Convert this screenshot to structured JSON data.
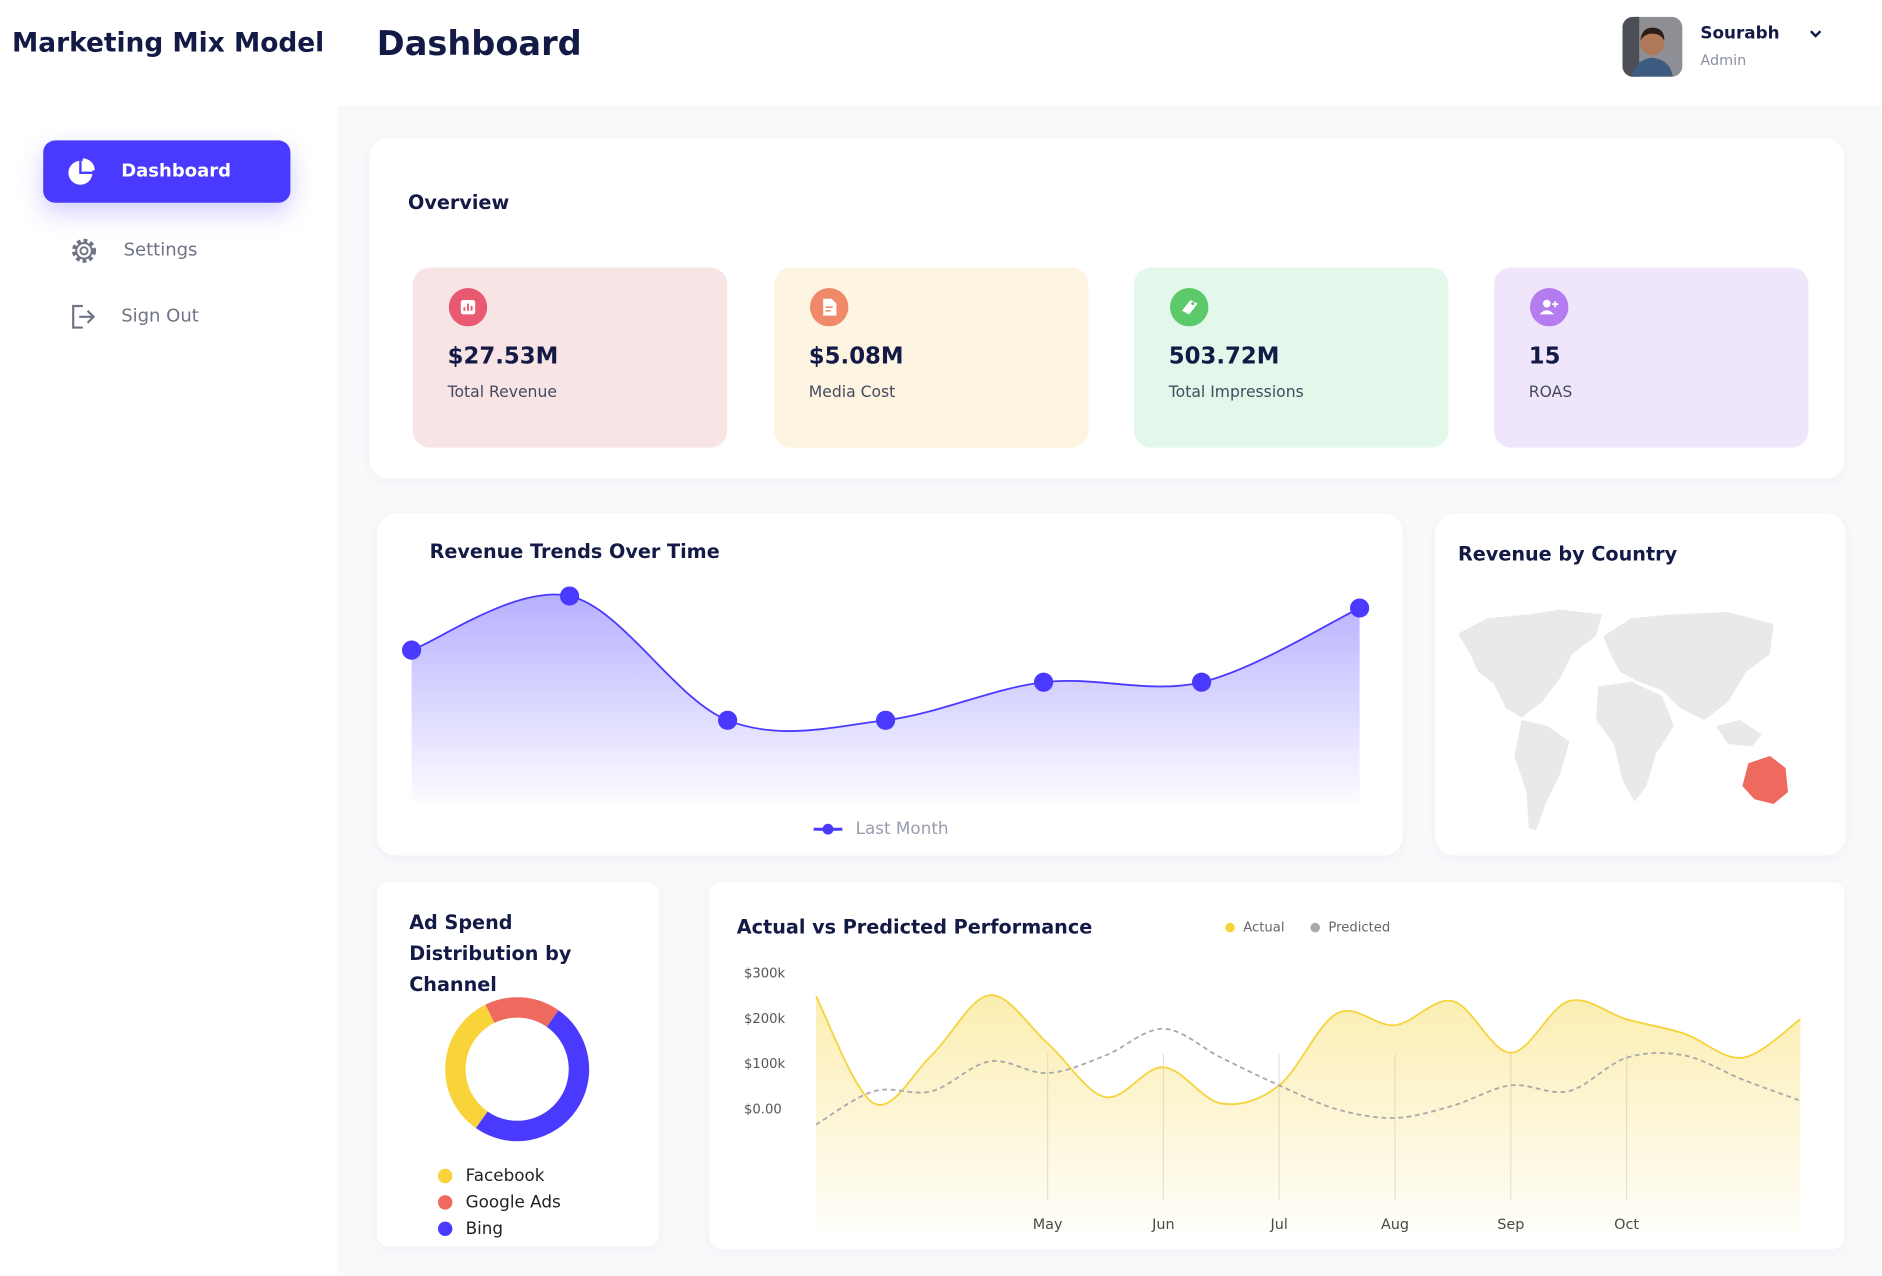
{
  "header": {
    "brand": "Marketing Mix Model",
    "page_title": "Dashboard",
    "user": {
      "name": "Sourabh",
      "role": "Admin"
    }
  },
  "nav": [
    {
      "label": "Dashboard",
      "active": true
    },
    {
      "label": "Settings"
    },
    {
      "label": "Sign Out"
    }
  ],
  "overview": {
    "title": "Overview",
    "cards": [
      {
        "value": "$27.53M",
        "label": "Total Revenue"
      },
      {
        "value": "$5.08M",
        "label": "Media Cost"
      },
      {
        "value": "503.72M",
        "label": "Total Impressions"
      },
      {
        "value": "15",
        "label": "ROAS"
      }
    ]
  },
  "map": {
    "title": "Revenue by Country"
  },
  "chart_data": [
    {
      "type": "area",
      "title": "Revenue Trends Over Time",
      "categories": [
        null,
        null,
        null,
        null,
        null,
        null,
        null
      ],
      "series": [
        {
          "name": "Last Month",
          "color": "#4a3aff",
          "fill": true,
          "markers": true,
          "values": [
            63,
            90,
            28,
            28,
            47,
            47,
            84
          ]
        }
      ],
      "ylim": [
        0,
        100
      ]
    },
    {
      "type": "donut",
      "title": "Ad Spend Distribution by Channel",
      "categories": [
        "Facebook",
        "Google Ads",
        "Bing"
      ],
      "values": [
        33,
        17,
        50
      ],
      "colors": [
        "#f8d33a",
        "#ee6a5f",
        "#4a3aff"
      ]
    },
    {
      "type": "area",
      "title": "Actual vs Predicted Performance",
      "categories": [
        null,
        null,
        null,
        null,
        "May",
        null,
        "Jun",
        null,
        "Jul",
        null,
        "Aug",
        null,
        "Sep",
        null,
        "Oct",
        null,
        null,
        null
      ],
      "series": [
        {
          "name": "Actual",
          "color": "#f5d33b",
          "fill": true,
          "values": [
            250000,
            13000,
            120000,
            252000,
            146000,
            27000,
            93000,
            13000,
            53000,
            212000,
            186000,
            239000,
            125000,
            239000,
            199000,
            167000,
            114000,
            199000
          ]
        },
        {
          "name": "Predicted",
          "color": "#a9a9a9",
          "dashed": true,
          "values": [
            -34000,
            40000,
            40000,
            106000,
            80000,
            119000,
            178000,
            114000,
            53000,
            0,
            -19000,
            8000,
            53000,
            40000,
            114000,
            119000,
            66000,
            19000
          ]
        }
      ],
      "ylim": [
        -280000,
        330000
      ],
      "yticks": [
        {
          "value": 0,
          "label": "$0.00"
        },
        {
          "value": 100000,
          "label": "$100k"
        },
        {
          "value": 200000,
          "label": "$200k"
        },
        {
          "value": 300000,
          "label": "$300k"
        }
      ]
    }
  ]
}
